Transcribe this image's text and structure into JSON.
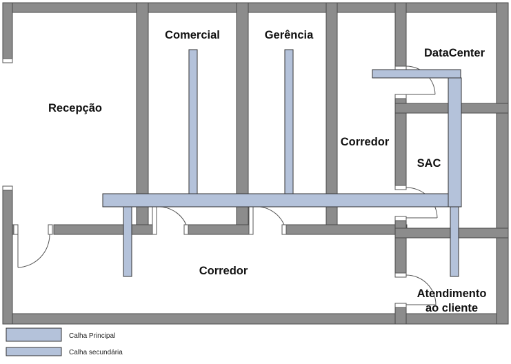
{
  "colors": {
    "wall": "#8c8c8c",
    "wall_stroke": "#4a4a4a",
    "floor": "#ffffff",
    "duct_fill": "#b4c2da",
    "duct_stroke": "#333333",
    "door": "#555555"
  },
  "rooms": {
    "recepcao": "Recepção",
    "comercial": "Comercial",
    "gerencia": "Gerência",
    "corredor_vertical": "Corredor",
    "datacenter": "DataCenter",
    "sac": "SAC",
    "corredor_principal": "Corredor",
    "atendimento_line1": "Atendimento",
    "atendimento_line2": "ao cliente"
  },
  "legend": {
    "principal": "Calha Principal",
    "secundaria": "Calha secundária"
  }
}
